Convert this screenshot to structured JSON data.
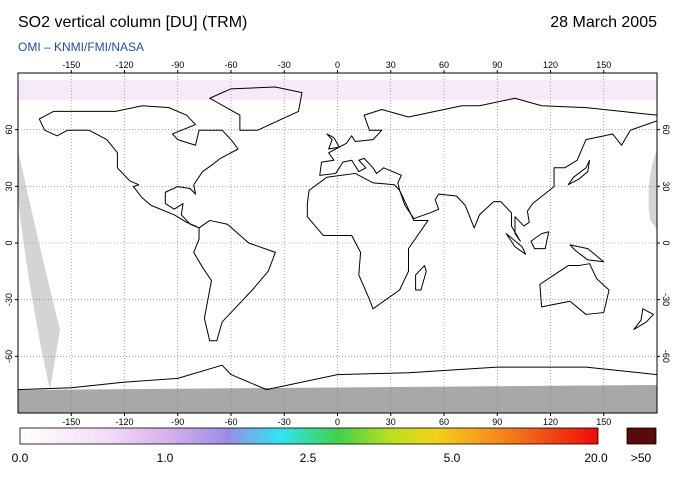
{
  "header": {
    "title": "SO2 vertical column [DU] (TRM)",
    "date": "28 March 2005",
    "subtitle": "OMI  –  KNMI/FMI/NASA"
  },
  "map": {
    "lon_ticks": [
      -150,
      -120,
      -90,
      -60,
      -30,
      0,
      30,
      60,
      90,
      120,
      150
    ],
    "lat_ticks": [
      60,
      30,
      0,
      -30,
      -60
    ]
  },
  "colorbar": {
    "labels": [
      "0.0",
      "1.0",
      "2.5",
      "5.0",
      "20.0"
    ],
    "overflow_label": ">50"
  }
}
